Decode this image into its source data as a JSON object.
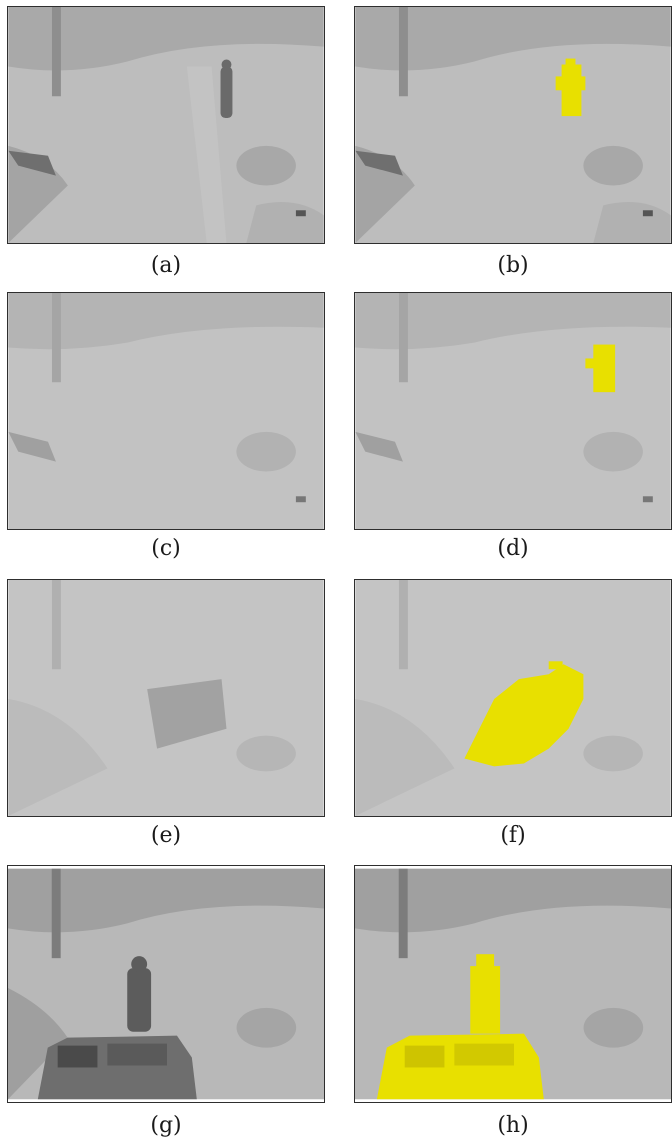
{
  "figure": {
    "panels": [
      {
        "label": "(a)",
        "scene": "snow-person-far",
        "highlight": false
      },
      {
        "label": "(b)",
        "scene": "snow-person-far",
        "highlight": true
      },
      {
        "label": "(c)",
        "scene": "snow-fog-empty",
        "highlight": false
      },
      {
        "label": "(d)",
        "scene": "snow-fog-empty",
        "highlight": true
      },
      {
        "label": "(e)",
        "scene": "snow-fog-vehicle",
        "highlight": false
      },
      {
        "label": "(f)",
        "scene": "snow-fog-vehicle",
        "highlight": true
      },
      {
        "label": "(g)",
        "scene": "snow-person-car",
        "highlight": false
      },
      {
        "label": "(h)",
        "scene": "snow-person-car",
        "highlight": true
      }
    ],
    "highlight_color": "#e8e000"
  }
}
